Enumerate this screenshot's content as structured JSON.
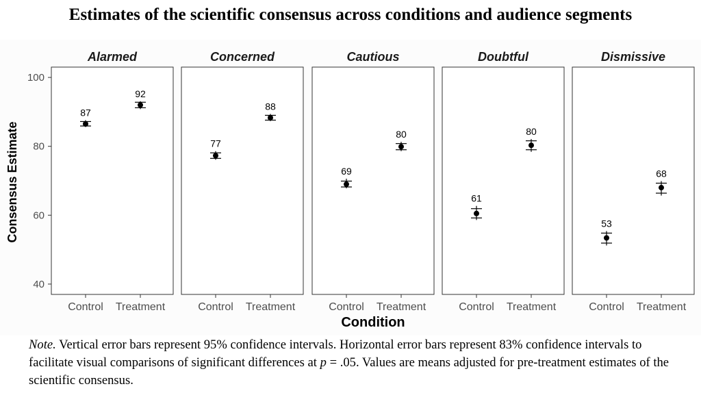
{
  "title": "Estimates of the scientific consensus across conditions and audience segments",
  "chart_data": {
    "type": "scatter",
    "subtype": "faceted point estimates with error bars",
    "xlabel": "Condition",
    "ylabel": "Consensus Estimate",
    "categories": [
      "Control",
      "Treatment"
    ],
    "ylim": [
      37,
      103
    ],
    "yticks": [
      40,
      60,
      80,
      100
    ],
    "grid": false,
    "facets": [
      {
        "label": "Alarmed",
        "points": [
          {
            "condition": "Control",
            "value": 86.5,
            "label": "87",
            "ci95": [
              85.6,
              87.6
            ],
            "ci83": [
              85.9,
              87.2
            ]
          },
          {
            "condition": "Treatment",
            "value": 92.0,
            "label": "92",
            "ci95": [
              90.8,
              93.1
            ],
            "ci83": [
              91.2,
              92.8
            ]
          }
        ]
      },
      {
        "label": "Concerned",
        "points": [
          {
            "condition": "Control",
            "value": 77.3,
            "label": "77",
            "ci95": [
              76.1,
              78.6
            ],
            "ci83": [
              76.5,
              78.1
            ]
          },
          {
            "condition": "Treatment",
            "value": 88.3,
            "label": "88",
            "ci95": [
              87.3,
              89.4
            ],
            "ci83": [
              87.6,
              89.0
            ]
          }
        ]
      },
      {
        "label": "Cautious",
        "points": [
          {
            "condition": "Control",
            "value": 69.0,
            "label": "69",
            "ci95": [
              67.8,
              70.6
            ],
            "ci83": [
              68.2,
              69.9
            ]
          },
          {
            "condition": "Treatment",
            "value": 79.9,
            "label": "80",
            "ci95": [
              78.6,
              81.3
            ],
            "ci83": [
              79.0,
              80.8
            ]
          }
        ]
      },
      {
        "label": "Doubtful",
        "points": [
          {
            "condition": "Control",
            "value": 60.5,
            "label": "61",
            "ci95": [
              58.6,
              62.7
            ],
            "ci83": [
              59.2,
              61.9
            ]
          },
          {
            "condition": "Treatment",
            "value": 80.3,
            "label": "80",
            "ci95": [
              78.4,
              82.1
            ],
            "ci83": [
              79.0,
              81.6
            ]
          }
        ]
      },
      {
        "label": "Dismissive",
        "points": [
          {
            "condition": "Control",
            "value": 53.4,
            "label": "53",
            "ci95": [
              51.2,
              55.4
            ],
            "ci83": [
              51.9,
              54.8
            ]
          },
          {
            "condition": "Treatment",
            "value": 68.0,
            "label": "68",
            "ci95": [
              65.7,
              69.9
            ],
            "ci83": [
              66.4,
              69.3
            ]
          }
        ]
      }
    ]
  },
  "note": {
    "lead": "Note.",
    "part1": " Vertical error bars represent 95% confidence intervals. Horizontal error bars represent 83% confidence intervals to facilitate visual comparisons of significant differences at ",
    "p": "p",
    "part2": " = .05. Values are means adjusted for pre-treatment estimates of the scientific consensus."
  }
}
